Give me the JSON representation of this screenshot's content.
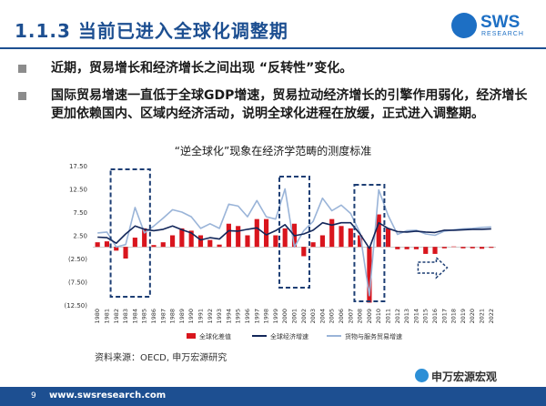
{
  "slide": {
    "title": "1.1.3 当前已进入全球化调整期",
    "logo_text": "SWS",
    "logo_sub": "RESEARCH",
    "bullets": [
      "近期，贸易增长和经济增长之间出现 “反转性”变化。",
      "国际贸易增速一直低于全球GDP增速，贸易拉动经济增长的引擎作用弱化，经济增长更加依赖国内、区域内经济活动，说明全球化进程在放缓，正式进入调整期。"
    ],
    "source": "资料来源：OECD, 申万宏源研究",
    "page_number": "9",
    "footer_url": "www.swsresearch.com",
    "watermark": "申万宏源宏观"
  },
  "colors": {
    "bar": "#d9151d",
    "gdp_line": "#13275a",
    "trade_line": "#9ab4d8",
    "box": "#1d3e74",
    "brand": "#1d4f91"
  },
  "chart_data": {
    "type": "bar",
    "title": "“逆全球化”现象在经济学范畴的测度标准",
    "ylim": [
      -12.5,
      17.5
    ],
    "yticks": [
      "17.50",
      "12.50",
      "7.50",
      "2.50",
      "(2.50)",
      "(7.50)",
      "(12.50)"
    ],
    "ytick_values": [
      17.5,
      12.5,
      7.5,
      2.5,
      -2.5,
      -7.5,
      -12.5
    ],
    "categories": [
      "1980",
      "1981",
      "1982",
      "1983",
      "1984",
      "1985",
      "1986",
      "1987",
      "1988",
      "1989",
      "1990",
      "1991",
      "1992",
      "1993",
      "1994",
      "1995",
      "1996",
      "1997",
      "1998",
      "1999",
      "2000",
      "2001",
      "2002",
      "2003",
      "2004",
      "2005",
      "2006",
      "2007",
      "2008",
      "2009",
      "2010",
      "2011",
      "2012",
      "2013",
      "2014",
      "2015",
      "2016",
      "2017",
      "2018",
      "2019",
      "2020",
      "2021",
      "2022"
    ],
    "series": [
      {
        "name": "全球化差值",
        "type": "bar",
        "values": [
          1.0,
          1.2,
          -0.8,
          -2.5,
          2.0,
          4.0,
          0.4,
          1.0,
          2.5,
          4.0,
          3.5,
          2.5,
          1.5,
          0.5,
          5.0,
          4.5,
          2.5,
          6.0,
          6.0,
          2.5,
          4.0,
          5.0,
          -2.0,
          1.0,
          2.5,
          6.0,
          4.5,
          4.0,
          2.5,
          -12.0,
          7.0,
          4.0,
          -0.5,
          -0.5,
          -0.5,
          -1.5,
          -1.5,
          -0.3,
          0.1,
          -0.3,
          -0.3,
          -0.4,
          -0.2
        ]
      },
      {
        "name": "全球经济增速",
        "type": "line",
        "values": [
          2.1,
          2.0,
          0.8,
          2.8,
          4.5,
          3.8,
          3.5,
          3.8,
          4.5,
          3.7,
          3.0,
          1.5,
          2.0,
          1.7,
          3.5,
          3.4,
          3.8,
          4.1,
          2.6,
          3.5,
          4.8,
          2.4,
          2.8,
          3.6,
          5.2,
          4.7,
          5.2,
          5.2,
          2.8,
          -0.3,
          5.2,
          4.0,
          3.3,
          3.2,
          3.4,
          3.2,
          3.1,
          3.6,
          3.6,
          3.7,
          3.8,
          3.8,
          3.9
        ]
      },
      {
        "name": "货物与服务贸易增速",
        "type": "line",
        "values": [
          3.0,
          3.2,
          0.0,
          0.5,
          8.5,
          3.0,
          4.5,
          6.2,
          8.0,
          7.5,
          6.5,
          4.0,
          5.0,
          4.0,
          9.2,
          8.8,
          6.5,
          10.0,
          6.5,
          6.0,
          12.5,
          0.0,
          3.5,
          5.5,
          10.5,
          7.8,
          9.0,
          7.2,
          3.0,
          -10.5,
          12.3,
          6.8,
          2.7,
          3.5,
          3.6,
          2.8,
          2.5,
          3.4,
          3.7,
          3.9,
          4.0,
          4.2,
          4.3
        ]
      }
    ]
  }
}
